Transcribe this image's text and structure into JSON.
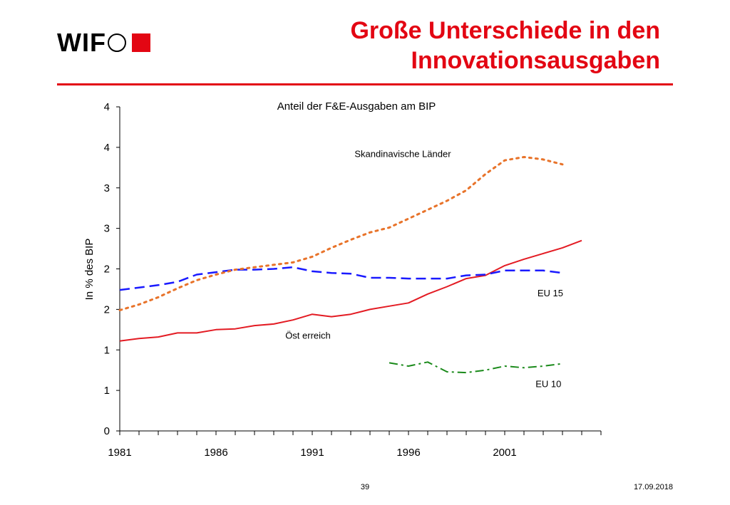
{
  "header": {
    "logo_text": "WIF",
    "title_line1": "Große Unterschiede in den",
    "title_line2": "Innovationsausgaben"
  },
  "footer": {
    "page_number": "39",
    "date": "17.09.2018"
  },
  "colors": {
    "accent": "#e30613",
    "oesterreich": "#e31b23",
    "eu15": "#1a1aff",
    "skandinavien": "#e8732a",
    "eu10": "#1a8a1a"
  },
  "chart_data": {
    "type": "line",
    "title": "Anteil der F&E-Ausgaben am BIP",
    "ylabel": "In % des BIP",
    "xlabel": "",
    "xlim": [
      1981,
      2006
    ],
    "ylim": [
      0,
      4
    ],
    "y_tick_values": [
      0,
      0.5,
      1,
      1.5,
      2,
      2.5,
      3,
      3.5,
      4
    ],
    "y_tick_labels": [
      "0",
      "1",
      "1",
      "2",
      "2",
      "3",
      "3",
      "4",
      "4"
    ],
    "x_tick_labels": [
      {
        "year": 1981,
        "label": "1981"
      },
      {
        "year": 1986,
        "label": "1986"
      },
      {
        "year": 1991,
        "label": "1991"
      },
      {
        "year": 1996,
        "label": "1996"
      },
      {
        "year": 2001,
        "label": "2001"
      }
    ],
    "grid": false,
    "series": [
      {
        "name": "Österreich",
        "style": "solid",
        "x": [
          1981,
          1982,
          1983,
          1984,
          1985,
          1986,
          1987,
          1988,
          1989,
          1990,
          1991,
          1992,
          1993,
          1994,
          1995,
          1996,
          1997,
          1998,
          1999,
          2000,
          2001,
          2002,
          2003,
          2004,
          2005
        ],
        "y": [
          1.11,
          1.14,
          1.16,
          1.21,
          1.21,
          1.25,
          1.26,
          1.3,
          1.32,
          1.37,
          1.44,
          1.41,
          1.44,
          1.5,
          1.54,
          1.58,
          1.69,
          1.78,
          1.88,
          1.92,
          2.04,
          2.12,
          2.19,
          2.26,
          2.35
        ]
      },
      {
        "name": "EU 15",
        "style": "dashed",
        "x": [
          1981,
          1982,
          1983,
          1984,
          1985,
          1986,
          1987,
          1988,
          1989,
          1990,
          1991,
          1992,
          1993,
          1994,
          1995,
          1996,
          1997,
          1998,
          1999,
          2000,
          2001,
          2002,
          2003,
          2004
        ],
        "y": [
          1.74,
          1.77,
          1.8,
          1.84,
          1.93,
          1.96,
          1.99,
          1.99,
          2.0,
          2.02,
          1.97,
          1.95,
          1.94,
          1.89,
          1.89,
          1.88,
          1.88,
          1.88,
          1.92,
          1.93,
          1.98,
          1.98,
          1.98,
          1.95
        ]
      },
      {
        "name": "Skandinavische Länder",
        "style": "dotted",
        "x": [
          1981,
          1982,
          1983,
          1984,
          1985,
          1986,
          1987,
          1988,
          1989,
          1990,
          1991,
          1992,
          1993,
          1994,
          1995,
          1996,
          1997,
          1998,
          1999,
          2000,
          2001,
          2002,
          2003,
          2004
        ],
        "y": [
          1.49,
          1.56,
          1.65,
          1.76,
          1.86,
          1.93,
          1.99,
          2.02,
          2.05,
          2.08,
          2.15,
          2.26,
          2.36,
          2.45,
          2.51,
          2.62,
          2.73,
          2.84,
          2.97,
          3.17,
          3.34,
          3.38,
          3.35,
          3.29
        ]
      },
      {
        "name": "EU 10",
        "style": "dashdot",
        "x": [
          1995,
          1996,
          1997,
          1998,
          1999,
          2000,
          2001,
          2002,
          2003,
          2004
        ],
        "y": [
          0.84,
          0.8,
          0.85,
          0.73,
          0.72,
          0.75,
          0.8,
          0.78,
          0.8,
          0.83
        ]
      }
    ],
    "annotations": [
      {
        "text": "Skandinavische Länder",
        "x": 1993.2,
        "y": 3.38,
        "anchor": "start"
      },
      {
        "text": "EU 15",
        "x": 2002.7,
        "y": 1.66,
        "anchor": "start"
      },
      {
        "text": "Öst erreich",
        "x": 1989.6,
        "y": 1.14,
        "anchor": "start"
      },
      {
        "text": "EU 10",
        "x": 2002.6,
        "y": 0.54,
        "anchor": "start"
      }
    ]
  }
}
